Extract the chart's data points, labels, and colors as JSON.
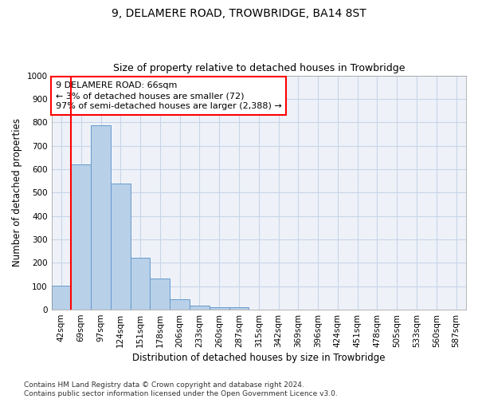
{
  "title1": "9, DELAMERE ROAD, TROWBRIDGE, BA14 8ST",
  "title2": "Size of property relative to detached houses in Trowbridge",
  "xlabel": "Distribution of detached houses by size in Trowbridge",
  "ylabel": "Number of detached properties",
  "categories": [
    "42sqm",
    "69sqm",
    "97sqm",
    "124sqm",
    "151sqm",
    "178sqm",
    "206sqm",
    "233sqm",
    "260sqm",
    "287sqm",
    "315sqm",
    "342sqm",
    "369sqm",
    "396sqm",
    "424sqm",
    "451sqm",
    "478sqm",
    "505sqm",
    "533sqm",
    "560sqm",
    "587sqm"
  ],
  "values": [
    103,
    622,
    787,
    537,
    222,
    133,
    43,
    17,
    10,
    12,
    0,
    0,
    0,
    0,
    0,
    0,
    0,
    0,
    0,
    0,
    0
  ],
  "bar_color": "#b8d0e8",
  "bar_edge_color": "#6699cc",
  "vline_color": "red",
  "vline_x": 0.5,
  "annotation_line1": "9 DELAMERE ROAD: 66sqm",
  "annotation_line2": "← 3% of detached houses are smaller (72)",
  "annotation_line3": "97% of semi-detached houses are larger (2,388) →",
  "annotation_box_color": "white",
  "annotation_box_edge_color": "red",
  "ylim": [
    0,
    1000
  ],
  "yticks": [
    0,
    100,
    200,
    300,
    400,
    500,
    600,
    700,
    800,
    900,
    1000
  ],
  "footer_text": "Contains HM Land Registry data © Crown copyright and database right 2024.\nContains public sector information licensed under the Open Government Licence v3.0.",
  "background_color": "#eef2f8",
  "grid_color": "#c8d4e8",
  "title1_fontsize": 10,
  "title2_fontsize": 9,
  "xlabel_fontsize": 8.5,
  "ylabel_fontsize": 8.5,
  "tick_fontsize": 7.5,
  "annotation_fontsize": 8,
  "footer_fontsize": 6.5
}
